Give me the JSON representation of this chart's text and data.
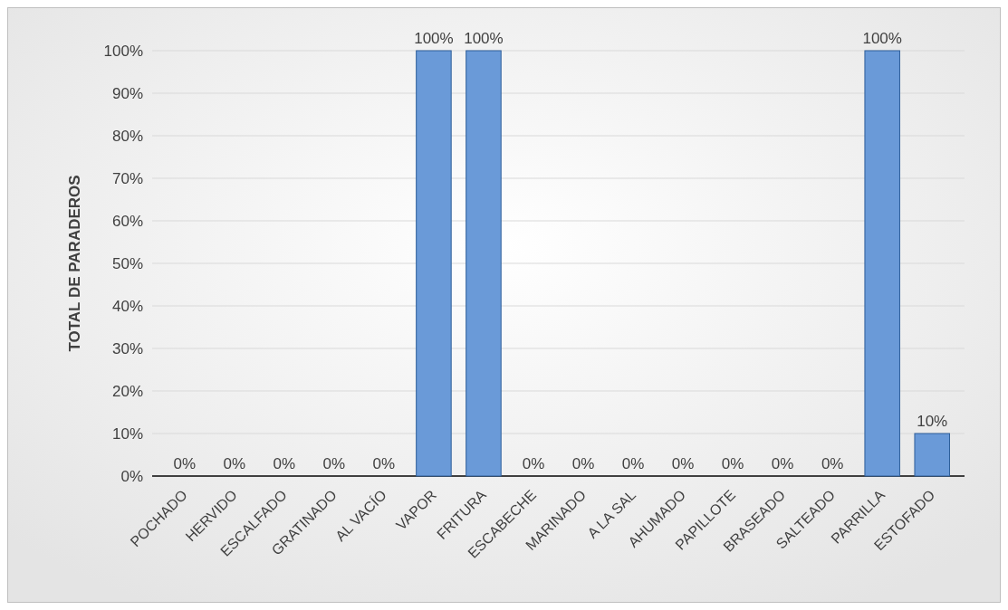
{
  "chart_data": {
    "type": "bar",
    "ylabel": "TOTAL DE PARADEROS",
    "categories": [
      "POCHADO",
      "HERVIDO",
      "ESCALFADO",
      "GRATINADO",
      "AL VACÍO",
      "VAPOR",
      "FRITURA",
      "ESCABECHE",
      "MARINADO",
      "A LA SAL",
      "AHUMADO",
      "PAPILLOTE",
      "BRASEADO",
      "SALTEADO",
      "PARRILLA",
      "ESTOFADO"
    ],
    "values": [
      0,
      0,
      0,
      0,
      0,
      100,
      100,
      0,
      0,
      0,
      0,
      0,
      0,
      0,
      100,
      10
    ],
    "value_labels": [
      "0%",
      "0%",
      "0%",
      "0%",
      "0%",
      "100%",
      "100%",
      "0%",
      "0%",
      "0%",
      "0%",
      "0%",
      "0%",
      "0%",
      "100%",
      "10%"
    ],
    "color": "#6a9ad8",
    "ylim": [
      0,
      100
    ],
    "yticks": [
      {
        "value": 0,
        "label": "0%"
      },
      {
        "value": 10,
        "label": "10%"
      },
      {
        "value": 20,
        "label": "20%"
      },
      {
        "value": 30,
        "label": "30%"
      },
      {
        "value": 40,
        "label": "40%"
      },
      {
        "value": 50,
        "label": "50%"
      },
      {
        "value": 60,
        "label": "60%"
      },
      {
        "value": 70,
        "label": "70%"
      },
      {
        "value": 80,
        "label": "80%"
      },
      {
        "value": 90,
        "label": "90%"
      },
      {
        "value": 100,
        "label": "100%"
      }
    ],
    "grid": "y"
  }
}
